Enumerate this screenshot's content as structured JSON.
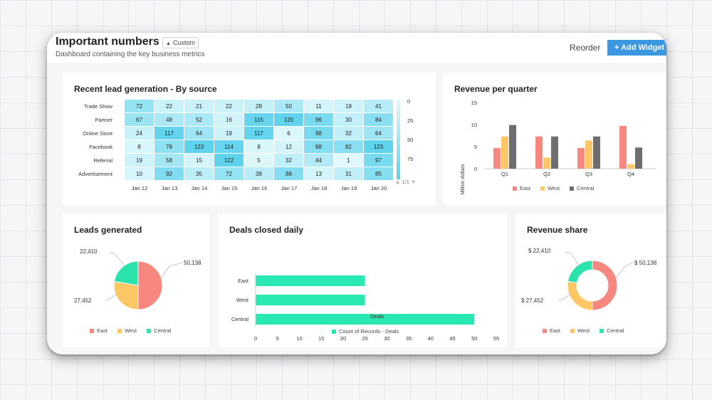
{
  "header": {
    "title": "Important numbers",
    "badge": "Custom",
    "badge_icon": "user-icon",
    "subtitle": "Dashboard containing the key business metrics",
    "reorder": "Reorder",
    "add_widget": "+ Add Widget"
  },
  "colors": {
    "east": "#f8877f",
    "west": "#fdc766",
    "central": "#2de3ad",
    "gray": "#6e6e6e",
    "bar_green": "#2ae8b2",
    "accent": "#3b97e0"
  },
  "lead_widget": {
    "title": "Recent lead generation - By source",
    "rows": [
      "Trade Show",
      "Partner",
      "Online Store",
      "Facebook",
      "Referral",
      "Advertisement"
    ],
    "cols": [
      "Jan 12",
      "Jan 13",
      "Jan 14",
      "Jan 15",
      "Jan 16",
      "Jan 17",
      "Jan 18",
      "Jan 19",
      "Jan 20"
    ],
    "values": [
      [
        72,
        22,
        21,
        22,
        28,
        50,
        11,
        18,
        41
      ],
      [
        67,
        48,
        52,
        16,
        115,
        120,
        96,
        30,
        84
      ],
      [
        24,
        117,
        64,
        19,
        117,
        6,
        98,
        32,
        64
      ],
      [
        8,
        78,
        123,
        114,
        8,
        12,
        88,
        82,
        123
      ],
      [
        19,
        58,
        15,
        122,
        5,
        32,
        44,
        1,
        97
      ],
      [
        10,
        92,
        35,
        72,
        38,
        88,
        13,
        31,
        85
      ]
    ],
    "scale_labels": [
      "0",
      "25",
      "50",
      "75"
    ],
    "pager": "1/1"
  },
  "revenue_widget": {
    "title": "Revenue per quarter",
    "ylabel": "Million dollars",
    "ticks": [
      "15",
      "10",
      "5",
      "0"
    ],
    "legend": [
      "East",
      "West",
      "Central"
    ],
    "chart_data": {
      "type": "bar",
      "categories": [
        "Q1",
        "Q2",
        "Q3",
        "Q4"
      ],
      "series": [
        {
          "name": "East",
          "values": [
            4.7,
            7.3,
            4.7,
            9.7
          ]
        },
        {
          "name": "West",
          "values": [
            7.3,
            2.5,
            6.4,
            1.0
          ]
        },
        {
          "name": "Central",
          "values": [
            9.9,
            7.3,
            7.3,
            4.8
          ]
        }
      ],
      "ylim": [
        0,
        15
      ]
    }
  },
  "leads_widget": {
    "title": "Leads generated",
    "labels": [
      "50,138",
      "27,452",
      "22,410"
    ],
    "legend": [
      "East",
      "West",
      "Central"
    ],
    "chart_data": {
      "type": "pie",
      "categories": [
        "East",
        "West",
        "Central"
      ],
      "values": [
        50138,
        27452,
        22410
      ]
    }
  },
  "deals_widget": {
    "title": "Deals closed daily",
    "xlabel": "Deals",
    "ticks": [
      "0",
      "5",
      "10",
      "15",
      "20",
      "25",
      "30",
      "35",
      "40",
      "45",
      "50",
      "55"
    ],
    "legend": "Count of Records - Deals",
    "chart_data": {
      "type": "bar",
      "categories": [
        "East",
        "West",
        "Central"
      ],
      "values": [
        25,
        25,
        50
      ],
      "xlim": [
        0,
        55
      ]
    }
  },
  "share_widget": {
    "title": "Revenue share",
    "labels": [
      "$ 50,138",
      "$ 27,452",
      "$ 22,410"
    ],
    "legend": [
      "East",
      "West",
      "Central"
    ],
    "chart_data": {
      "type": "pie",
      "categories": [
        "East",
        "West",
        "Central"
      ],
      "values": [
        50138,
        27452,
        22410
      ]
    }
  }
}
